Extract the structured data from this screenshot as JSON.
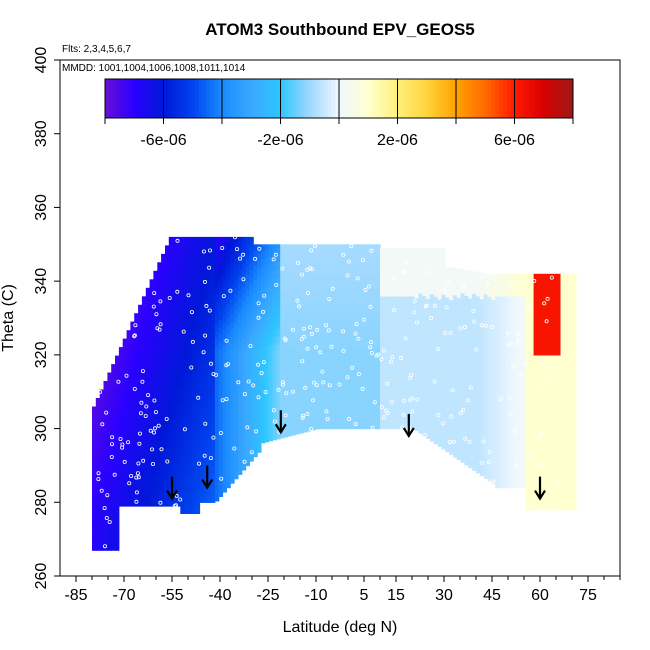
{
  "title": "ATOM3 Southbound EPV_GEOS5",
  "flights_note": "Flts: 2,3,4,5,6,7",
  "dates_note": "MMDD: 1001,1004,1006,1008,1011,1014",
  "chart_data": {
    "type": "heatmap",
    "title": "ATOM3 Southbound EPV_GEOS5",
    "xlabel": "Latitude (deg N)",
    "ylabel": "Theta (C)",
    "xlim": [
      -90,
      85
    ],
    "ylim": [
      260,
      400
    ],
    "x_ticks": [
      -85,
      -70,
      -55,
      -40,
      -25,
      -10,
      5,
      15,
      30,
      45,
      60,
      75
    ],
    "x_tick_labels": [
      "-85",
      "-70",
      "-55",
      "-40",
      "-25",
      "-10",
      "5",
      "15",
      "30",
      "45",
      "60",
      "75"
    ],
    "y_ticks": [
      260,
      280,
      300,
      320,
      340,
      360,
      380,
      400
    ],
    "y_tick_labels": [
      "260",
      "280",
      "300",
      "320",
      "340",
      "360",
      "380",
      "400"
    ],
    "colorbar": {
      "range": [
        -8e-06,
        8e-06
      ],
      "ticks": [
        -6e-06,
        -2e-06,
        2e-06,
        6e-06
      ],
      "tick_labels": [
        "-6e-06",
        "-2e-06",
        "2e-06",
        "6e-06"
      ],
      "colors": [
        "#6a0fd6",
        "#2a00ff",
        "#0018d8",
        "#0044ee",
        "#1a8bff",
        "#3aa8ff",
        "#2ec6ff",
        "#9fd8ff",
        "#f0f8ff",
        "#ffffd0",
        "#fff07a",
        "#ffd43c",
        "#ffa200",
        "#ff6a00",
        "#ff1a00",
        "#d90000",
        "#9a1a1a"
      ]
    },
    "tropopause_arrows": [
      {
        "lat": -55,
        "theta": 281
      },
      {
        "lat": -44,
        "theta": 284
      },
      {
        "lat": -21,
        "theta": 299
      },
      {
        "lat": 19,
        "theta": 298
      },
      {
        "lat": 60,
        "theta": 281
      }
    ]
  }
}
